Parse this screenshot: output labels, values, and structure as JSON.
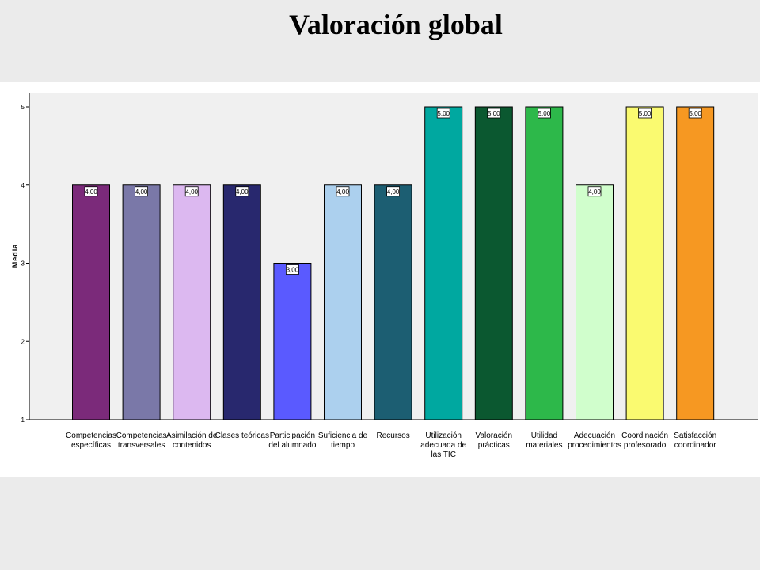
{
  "slide": {
    "title": "Valoración global"
  },
  "chart_data": {
    "type": "bar",
    "title": "",
    "xlabel": "",
    "ylabel": "Media",
    "ylim": [
      1,
      5
    ],
    "yticks": [
      "1",
      "2",
      "3",
      "4",
      "5"
    ],
    "grid": false,
    "legend": "none",
    "categories": [
      [
        "Competencias",
        "específicas"
      ],
      [
        "Competencias",
        "transversales"
      ],
      [
        "Asimilación de",
        "contenidos"
      ],
      [
        "Clases teóricas"
      ],
      [
        "Participación",
        "del alumnado"
      ],
      [
        "Suficiencia de",
        "tiempo"
      ],
      [
        "Recursos"
      ],
      [
        "Utilización",
        "adecuada de",
        "las TIC"
      ],
      [
        "Valoración",
        "prácticas"
      ],
      [
        "Utilidad",
        "materiales"
      ],
      [
        "Adecuación",
        "procedimientos"
      ],
      [
        "Coordinación",
        "profesorado"
      ],
      [
        "Satisfacción",
        "coordinador"
      ]
    ],
    "values": [
      4,
      4,
      4,
      4,
      3,
      4,
      4,
      5,
      5,
      5,
      4,
      5,
      5
    ],
    "value_labels": [
      "4,00",
      "4,00",
      "4,00",
      "4,00",
      "3,00",
      "4,00",
      "4,00",
      "5,00",
      "5,00",
      "5,00",
      "4,00",
      "5,00",
      "5,00"
    ],
    "colors": [
      "#7b2a7a",
      "#7a78a8",
      "#dcb8f0",
      "#28286e",
      "#5a5aff",
      "#acd0ee",
      "#1c5e72",
      "#00a8a0",
      "#0b5830",
      "#2db84a",
      "#d0fecc",
      "#fafa70",
      "#f69822"
    ]
  }
}
